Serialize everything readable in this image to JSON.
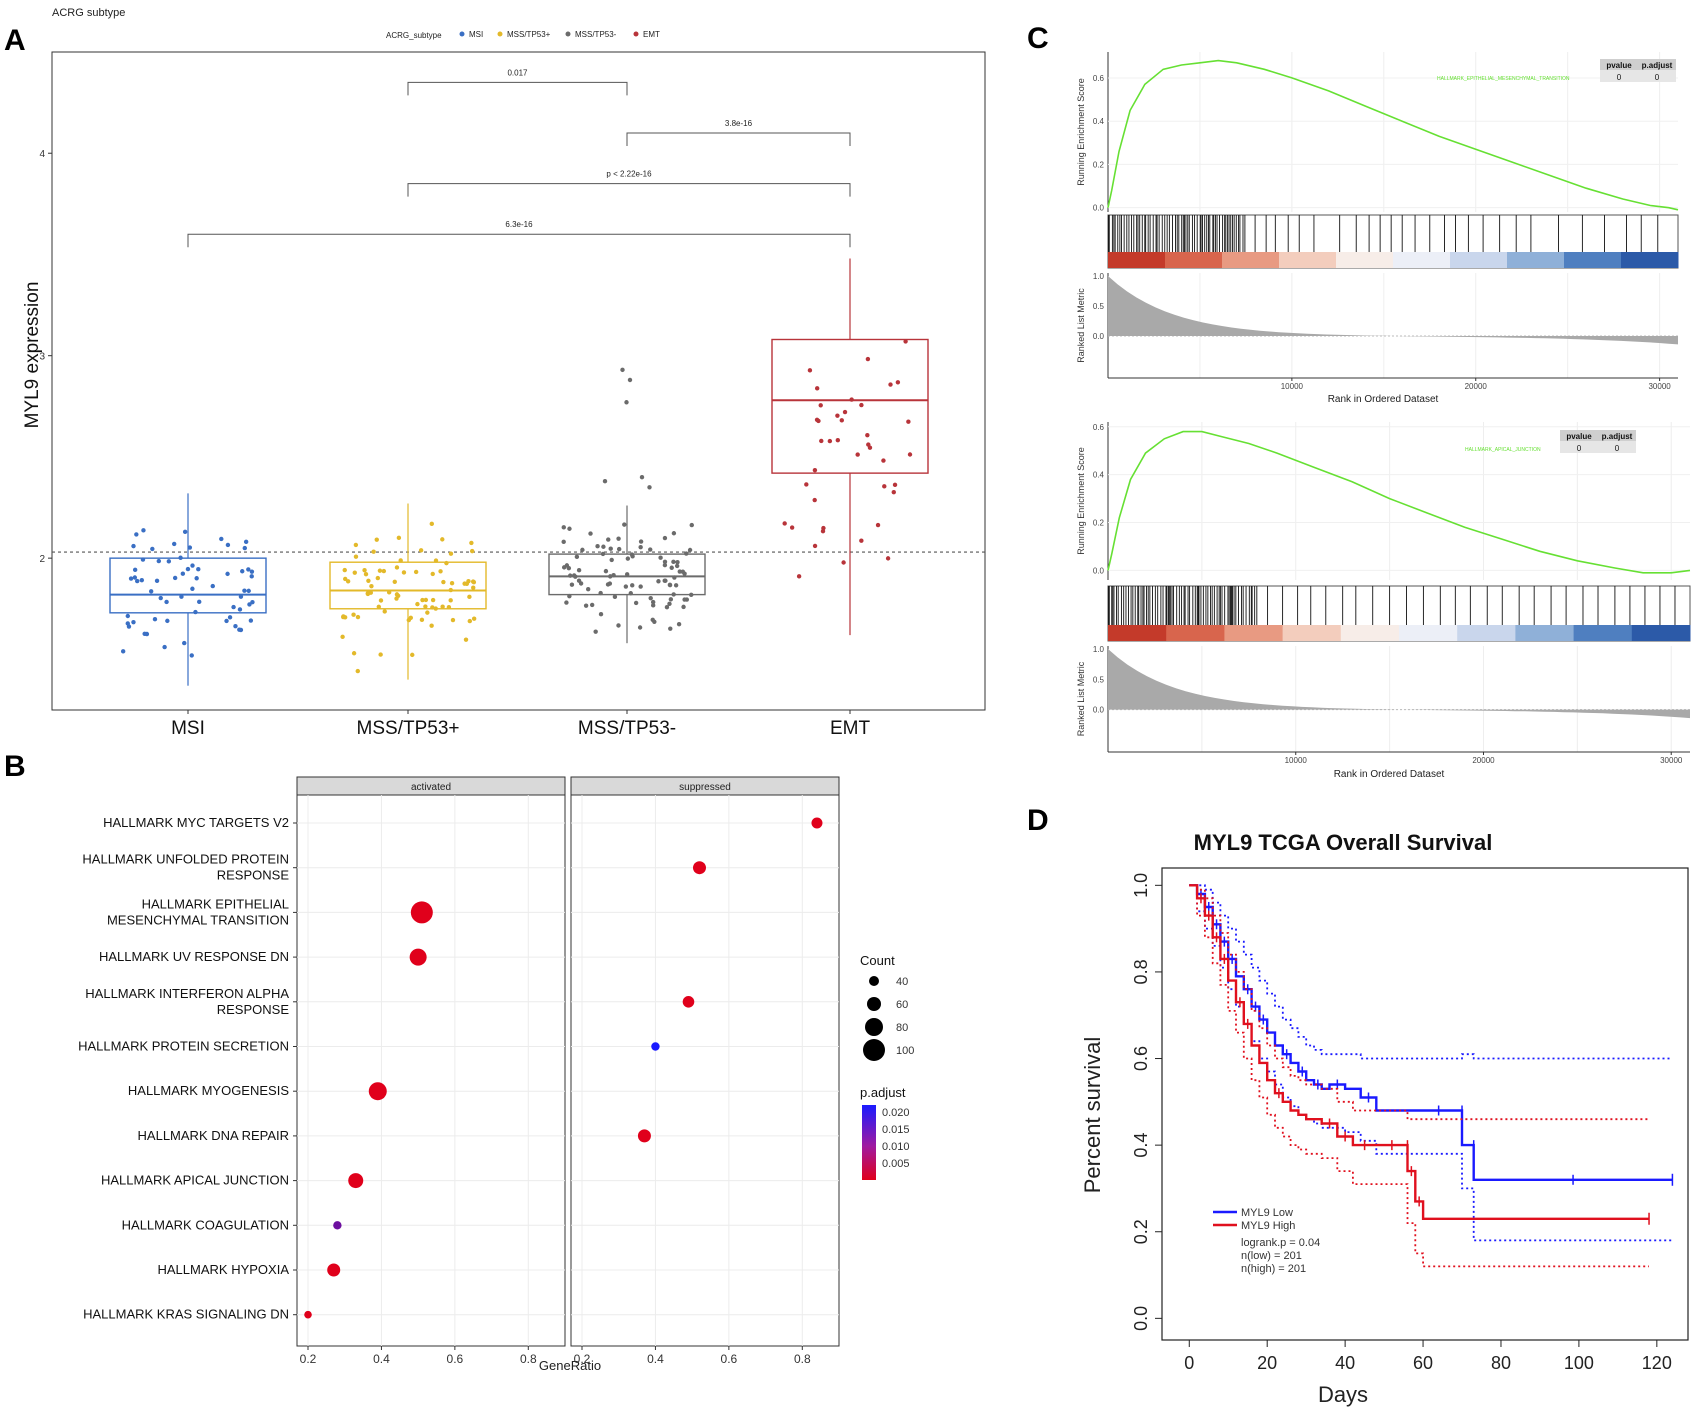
{
  "panels": {
    "a": "A",
    "b": "B",
    "c": "C",
    "d": "D"
  },
  "chart_data": [
    {
      "id": "A",
      "type": "box",
      "header": "ACRG subtype",
      "legend_title": "ACRG_subtype",
      "ylabel": "MYL9 expression",
      "ylim": [
        1.25,
        4.5
      ],
      "yticks": [
        2,
        3,
        4
      ],
      "reference_line": 2.03,
      "categories": [
        "MSI",
        "MSS/TP53+",
        "MSS/TP53-",
        "EMT"
      ],
      "colors": [
        "#3a6fc4",
        "#e3b92a",
        "#6b6b6b",
        "#b8343a"
      ],
      "boxes": [
        {
          "min": 1.37,
          "q1": 1.73,
          "median": 1.82,
          "q3": 2.0,
          "max": 2.32,
          "n": 65
        },
        {
          "min": 1.4,
          "q1": 1.75,
          "median": 1.84,
          "q3": 1.98,
          "max": 2.27,
          "n": 80
        },
        {
          "min": 1.58,
          "q1": 1.82,
          "median": 1.91,
          "q3": 2.02,
          "max": 2.26,
          "n": 90
        },
        {
          "min": 1.62,
          "q1": 2.42,
          "median": 2.78,
          "q3": 3.08,
          "max": 3.48,
          "n": 40
        }
      ],
      "outliers": [
        [
          2,
          2.88
        ],
        [
          2,
          2.93
        ],
        [
          2,
          2.77
        ],
        [
          2,
          2.38
        ],
        [
          2,
          2.4
        ],
        [
          2,
          2.35
        ]
      ],
      "comparisons": [
        {
          "from": 1,
          "to": 2,
          "label": "0.017",
          "y": 4.35
        },
        {
          "from": 2,
          "to": 3,
          "label": "3.8e-16",
          "y": 4.1
        },
        {
          "from": 1,
          "to": 3,
          "label": "p < 2.22e-16",
          "y": 3.85
        },
        {
          "from": 0,
          "to": 3,
          "label": "6.3e-16",
          "y": 3.6
        }
      ]
    },
    {
      "id": "B",
      "type": "dot",
      "xlabel": "GeneRatio",
      "facets": [
        "activated",
        "suppressed"
      ],
      "xlim": [
        0.17,
        0.9
      ],
      "xticks": [
        0.2,
        0.4,
        0.6,
        0.8
      ],
      "pathways": [
        "HALLMARK MYC TARGETS V2",
        "HALLMARK UNFOLDED PROTEIN\nRESPONSE",
        "HALLMARK EPITHELIAL\nMESENCHYMAL TRANSITION",
        "HALLMARK UV RESPONSE DN",
        "HALLMARK INTERFERON ALPHA\nRESPONSE",
        "HALLMARK PROTEIN SECRETION",
        "HALLMARK MYOGENESIS",
        "HALLMARK DNA REPAIR",
        "HALLMARK APICAL JUNCTION",
        "HALLMARK COAGULATION",
        "HALLMARK HYPOXIA",
        "HALLMARK KRAS SIGNALING DN"
      ],
      "points": [
        {
          "facet": 1,
          "row": 0,
          "x": 0.84,
          "count": 45,
          "p": 0.001
        },
        {
          "facet": 1,
          "row": 1,
          "x": 0.52,
          "count": 55,
          "p": 0.001
        },
        {
          "facet": 0,
          "row": 2,
          "x": 0.51,
          "count": 100,
          "p": 0.001
        },
        {
          "facet": 0,
          "row": 3,
          "x": 0.5,
          "count": 75,
          "p": 0.001
        },
        {
          "facet": 1,
          "row": 4,
          "x": 0.49,
          "count": 48,
          "p": 0.001
        },
        {
          "facet": 1,
          "row": 5,
          "x": 0.4,
          "count": 32,
          "p": 0.02
        },
        {
          "facet": 0,
          "row": 6,
          "x": 0.39,
          "count": 80,
          "p": 0.001
        },
        {
          "facet": 1,
          "row": 7,
          "x": 0.37,
          "count": 55,
          "p": 0.001
        },
        {
          "facet": 0,
          "row": 8,
          "x": 0.33,
          "count": 65,
          "p": 0.001
        },
        {
          "facet": 0,
          "row": 9,
          "x": 0.28,
          "count": 32,
          "p": 0.012
        },
        {
          "facet": 0,
          "row": 10,
          "x": 0.27,
          "count": 55,
          "p": 0.001
        },
        {
          "facet": 0,
          "row": 11,
          "x": 0.2,
          "count": 28,
          "p": 0.001
        }
      ],
      "size_legend": {
        "title": "Count",
        "values": [
          40,
          60,
          80,
          100
        ]
      },
      "color_legend": {
        "title": "p.adjust",
        "ticks": [
          "0.020",
          "0.015",
          "0.010",
          "0.005"
        ],
        "low": "#e0001b",
        "high": "#1a1aff"
      }
    },
    {
      "id": "C",
      "type": "gsea",
      "panels": [
        {
          "name": "HALLMARK_EPITHELIAL_MESENCHYMAL_TRANSITION",
          "pvalue": "0",
          "padjust": "0",
          "es_yticks": [
            "0.0",
            "0.2",
            "0.4",
            "0.6"
          ],
          "es_ylim": [
            -0.02,
            0.72
          ],
          "es_curve": [
            [
              0,
              0.0
            ],
            [
              200,
              0.08
            ],
            [
              600,
              0.26
            ],
            [
              1200,
              0.45
            ],
            [
              2000,
              0.57
            ],
            [
              3000,
              0.64
            ],
            [
              4000,
              0.66
            ],
            [
              5000,
              0.67
            ],
            [
              6000,
              0.68
            ],
            [
              7000,
              0.67
            ],
            [
              8500,
              0.64
            ],
            [
              10000,
              0.6
            ],
            [
              12000,
              0.54
            ],
            [
              14000,
              0.47
            ],
            [
              16000,
              0.4
            ],
            [
              18000,
              0.33
            ],
            [
              20000,
              0.27
            ],
            [
              22000,
              0.21
            ],
            [
              24000,
              0.15
            ],
            [
              26000,
              0.09
            ],
            [
              28000,
              0.04
            ],
            [
              29500,
              0.01
            ],
            [
              30500,
              0.0
            ],
            [
              31000,
              -0.01
            ]
          ],
          "hits_dense_until": 7500,
          "hits_sparse": [
            8000,
            8600,
            9100,
            9800,
            10400,
            11200,
            12600,
            13500,
            14200,
            14800,
            15400,
            16000,
            16700,
            17500,
            18300,
            18900,
            19600,
            20400,
            21300,
            22200,
            23000,
            24500,
            25800,
            27000,
            28200,
            29000,
            29900
          ],
          "rank_yticks": [
            "1.0",
            "0.5",
            "0.0"
          ],
          "xticks": [
            10000,
            20000,
            30000
          ],
          "xlabel": "Rank in Ordered Dataset",
          "ylabel_es": "Running Enrichment Score",
          "ylabel_rank": "Ranked List Metric"
        },
        {
          "name": "HALLMARK_APICAL_JUNCTION",
          "pvalue": "0",
          "padjust": "0",
          "es_yticks": [
            "0.0",
            "0.2",
            "0.4",
            "0.6"
          ],
          "es_ylim": [
            -0.04,
            0.62
          ],
          "es_curve": [
            [
              0,
              0.0
            ],
            [
              200,
              0.07
            ],
            [
              600,
              0.22
            ],
            [
              1200,
              0.38
            ],
            [
              2000,
              0.49
            ],
            [
              3000,
              0.55
            ],
            [
              4000,
              0.58
            ],
            [
              5000,
              0.58
            ],
            [
              6000,
              0.56
            ],
            [
              7500,
              0.53
            ],
            [
              9000,
              0.49
            ],
            [
              11000,
              0.43
            ],
            [
              13000,
              0.37
            ],
            [
              15000,
              0.3
            ],
            [
              17000,
              0.24
            ],
            [
              19000,
              0.18
            ],
            [
              21000,
              0.13
            ],
            [
              23000,
              0.08
            ],
            [
              25000,
              0.04
            ],
            [
              27000,
              0.01
            ],
            [
              28500,
              -0.01
            ],
            [
              30000,
              -0.01
            ],
            [
              31000,
              0.0
            ]
          ],
          "hits_dense_until": 8000,
          "hits_sparse": [
            8500,
            9300,
            10100,
            10800,
            11600,
            12500,
            13200,
            14100,
            15000,
            15900,
            16800,
            17700,
            18500,
            19300,
            20200,
            21000,
            21900,
            22700,
            23600,
            24400,
            25300,
            26100,
            27000,
            27800,
            28600,
            29400,
            30200
          ],
          "rank_yticks": [
            "1.0",
            "0.5",
            "0.0"
          ],
          "xticks": [
            10000,
            20000,
            30000
          ],
          "xlabel": "Rank in Ordered Dataset",
          "ylabel_es": "Running Enrichment Score",
          "ylabel_rank": "Ranked List Metric"
        }
      ],
      "table_headers": [
        "pvalue",
        "p.adjust"
      ]
    },
    {
      "id": "D",
      "type": "line",
      "title": "MYL9 TCGA Overall Survival",
      "xlabel": "Days",
      "ylabel": "Percent survival",
      "xlim": [
        -7,
        128
      ],
      "ylim": [
        -0.05,
        1.04
      ],
      "xticks": [
        0,
        20,
        40,
        60,
        80,
        100,
        120
      ],
      "yticks": [
        "0.0",
        "0.2",
        "0.4",
        "0.6",
        "0.8",
        "1.0"
      ],
      "series": [
        {
          "name": "MYL9 Low",
          "color": "#1a1aff",
          "x": [
            0,
            2,
            4,
            6,
            8,
            10,
            12,
            14,
            16,
            18,
            20,
            22,
            24,
            26,
            28,
            30,
            32,
            34,
            36,
            40,
            44,
            48,
            58,
            70,
            70,
            73,
            73,
            124
          ],
          "y": [
            1.0,
            0.98,
            0.95,
            0.91,
            0.87,
            0.83,
            0.79,
            0.76,
            0.72,
            0.69,
            0.66,
            0.63,
            0.61,
            0.59,
            0.57,
            0.55,
            0.54,
            0.53,
            0.54,
            0.53,
            0.51,
            0.48,
            0.48,
            0.48,
            0.4,
            0.4,
            0.32,
            0.32
          ],
          "upper": [
            1.0,
            1.0,
            0.99,
            0.96,
            0.93,
            0.9,
            0.87,
            0.84,
            0.81,
            0.78,
            0.75,
            0.72,
            0.69,
            0.67,
            0.65,
            0.63,
            0.62,
            0.61,
            0.61,
            0.61,
            0.6,
            0.6,
            0.6,
            0.61,
            0.61,
            0.6,
            0.6,
            0.6
          ],
          "lower": [
            1.0,
            0.94,
            0.9,
            0.86,
            0.81,
            0.76,
            0.72,
            0.68,
            0.64,
            0.6,
            0.57,
            0.54,
            0.51,
            0.49,
            0.47,
            0.46,
            0.45,
            0.44,
            0.44,
            0.43,
            0.41,
            0.38,
            0.38,
            0.38,
            0.3,
            0.2,
            0.18,
            0.18
          ]
        },
        {
          "name": "MYL9 High",
          "color": "#e0101e",
          "x": [
            0,
            2,
            4,
            6,
            8,
            10,
            12,
            14,
            16,
            18,
            20,
            22,
            24,
            26,
            28,
            30,
            34,
            38,
            42,
            48,
            56,
            56,
            58,
            58,
            60,
            60,
            118
          ],
          "y": [
            1.0,
            0.97,
            0.93,
            0.88,
            0.83,
            0.78,
            0.73,
            0.68,
            0.63,
            0.59,
            0.55,
            0.52,
            0.5,
            0.48,
            0.47,
            0.46,
            0.45,
            0.42,
            0.4,
            0.4,
            0.4,
            0.34,
            0.34,
            0.27,
            0.27,
            0.23,
            0.23
          ],
          "upper": [
            1.0,
            0.99,
            0.97,
            0.93,
            0.89,
            0.84,
            0.8,
            0.76,
            0.71,
            0.67,
            0.63,
            0.6,
            0.58,
            0.56,
            0.55,
            0.54,
            0.53,
            0.5,
            0.48,
            0.48,
            0.48,
            0.46,
            0.46,
            0.46,
            0.46,
            0.46,
            0.46
          ],
          "lower": [
            1.0,
            0.93,
            0.88,
            0.82,
            0.77,
            0.71,
            0.66,
            0.6,
            0.55,
            0.51,
            0.47,
            0.44,
            0.42,
            0.4,
            0.39,
            0.38,
            0.37,
            0.34,
            0.31,
            0.31,
            0.31,
            0.22,
            0.2,
            0.15,
            0.12,
            0.12,
            0.12
          ]
        }
      ],
      "legend_stats": [
        "logrank.p = 0.04",
        "n(low) = 201",
        "n(high) = 201"
      ]
    }
  ]
}
